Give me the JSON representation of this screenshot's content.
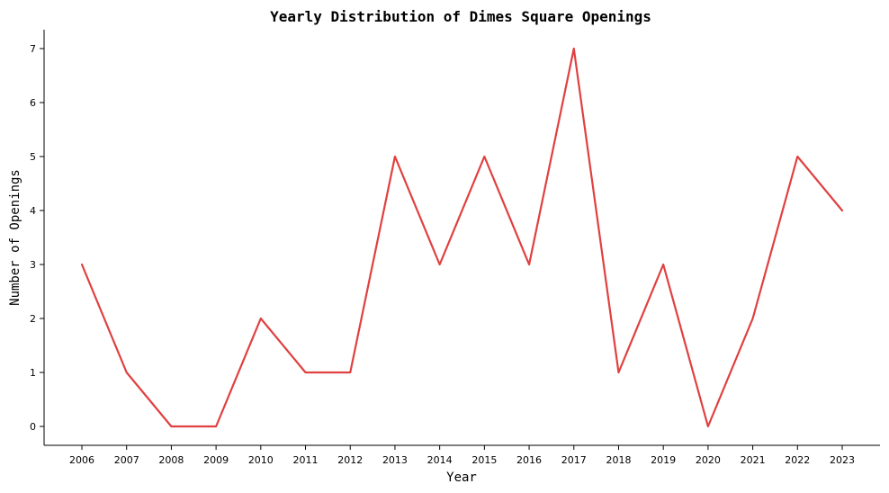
{
  "chart_data": {
    "type": "line",
    "title": "Yearly Distribution of Dimes Square Openings",
    "xlabel": "Year",
    "ylabel": "Number of Openings",
    "x": [
      "2006",
      "2007",
      "2008",
      "2009",
      "2010",
      "2011",
      "2012",
      "2013",
      "2014",
      "2015",
      "2016",
      "2017",
      "2018",
      "2019",
      "2020",
      "2021",
      "2022",
      "2023"
    ],
    "series": [
      {
        "values": [
          3,
          1,
          0,
          0,
          2,
          1,
          1,
          5,
          3,
          5,
          3,
          7,
          1,
          3,
          0,
          2,
          5,
          4
        ],
        "color": "#e04040"
      }
    ],
    "yticks": [
      0,
      1,
      2,
      3,
      4,
      5,
      6,
      7
    ],
    "ylim": [
      -0.35,
      7.35
    ],
    "grid": false,
    "legend": "none"
  }
}
